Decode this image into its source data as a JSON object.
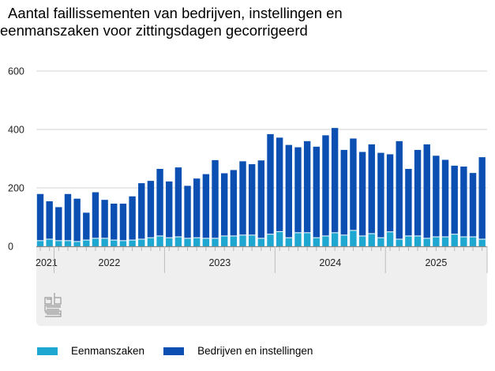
{
  "title_line1": "Aantal faillissementen van bedrijven, instellingen en",
  "title_line2": "eenmanszaken voor zittingsdagen gecorrigeerd",
  "logo": "cbs-logo",
  "colors": {
    "eenmanszaken": "#1ea7d0",
    "bedrijven": "#0b4fb3",
    "grid": "#e2e2e2",
    "panel": "#efefef"
  },
  "chart_data": {
    "type": "bar",
    "stacked": true,
    "title": "Aantal faillissementen van bedrijven, instellingen en eenmanszaken voor zittingsdagen gecorrigeerd",
    "xlabel": "",
    "ylabel": "",
    "ylim": [
      0,
      600
    ],
    "yticks": [
      0,
      200,
      400,
      600
    ],
    "grid": true,
    "legend_position": "bottom-left",
    "x_start": "2021-11",
    "year_labels": [
      {
        "label": "2021",
        "first_index": 0,
        "count": 2
      },
      {
        "label": "2022",
        "first_index": 2,
        "count": 12
      },
      {
        "label": "2023",
        "first_index": 14,
        "count": 12
      },
      {
        "label": "2024",
        "first_index": 26,
        "count": 12
      },
      {
        "label": "2025",
        "first_index": 38,
        "count": 11
      }
    ],
    "categories": [
      "2021-11",
      "2021-12",
      "2022-01",
      "2022-02",
      "2022-03",
      "2022-04",
      "2022-05",
      "2022-06",
      "2022-07",
      "2022-08",
      "2022-09",
      "2022-10",
      "2022-11",
      "2022-12",
      "2023-01",
      "2023-02",
      "2023-03",
      "2023-04",
      "2023-05",
      "2023-06",
      "2023-07",
      "2023-08",
      "2023-09",
      "2023-10",
      "2023-11",
      "2023-12",
      "2024-01",
      "2024-02",
      "2024-03",
      "2024-04",
      "2024-05",
      "2024-06",
      "2024-07",
      "2024-08",
      "2024-09",
      "2024-10",
      "2024-11",
      "2024-12",
      "2025-01",
      "2025-02",
      "2025-03",
      "2025-04",
      "2025-05",
      "2025-06",
      "2025-07",
      "2025-08",
      "2025-09",
      "2025-10",
      "2025-11"
    ],
    "series": [
      {
        "name": "Eenmanszaken",
        "color": "#1ea7d0",
        "values": [
          18,
          23,
          18,
          18,
          15,
          20,
          26,
          26,
          20,
          18,
          20,
          23,
          28,
          34,
          28,
          31,
          26,
          28,
          26,
          26,
          34,
          34,
          37,
          37,
          26,
          40,
          49,
          28,
          45,
          45,
          28,
          34,
          45,
          37,
          53,
          34,
          42,
          28,
          48,
          23,
          34,
          34,
          26,
          31,
          31,
          40,
          31,
          31,
          23
        ]
      },
      {
        "name": "Bedrijven en instellingen",
        "color": "#0b4fb3",
        "values": [
          161,
          131,
          116,
          161,
          148,
          95,
          159,
          133,
          126,
          128,
          151,
          193,
          196,
          231,
          194,
          239,
          181,
          204,
          221,
          269,
          216,
          227,
          254,
          244,
          268,
          344,
          323,
          319,
          294,
          315,
          313,
          346,
          360,
          293,
          316,
          289,
          307,
          292,
          267,
          337,
          231,
          296,
          323,
          279,
          265,
          236,
          242,
          220,
          282
        ]
      }
    ]
  }
}
